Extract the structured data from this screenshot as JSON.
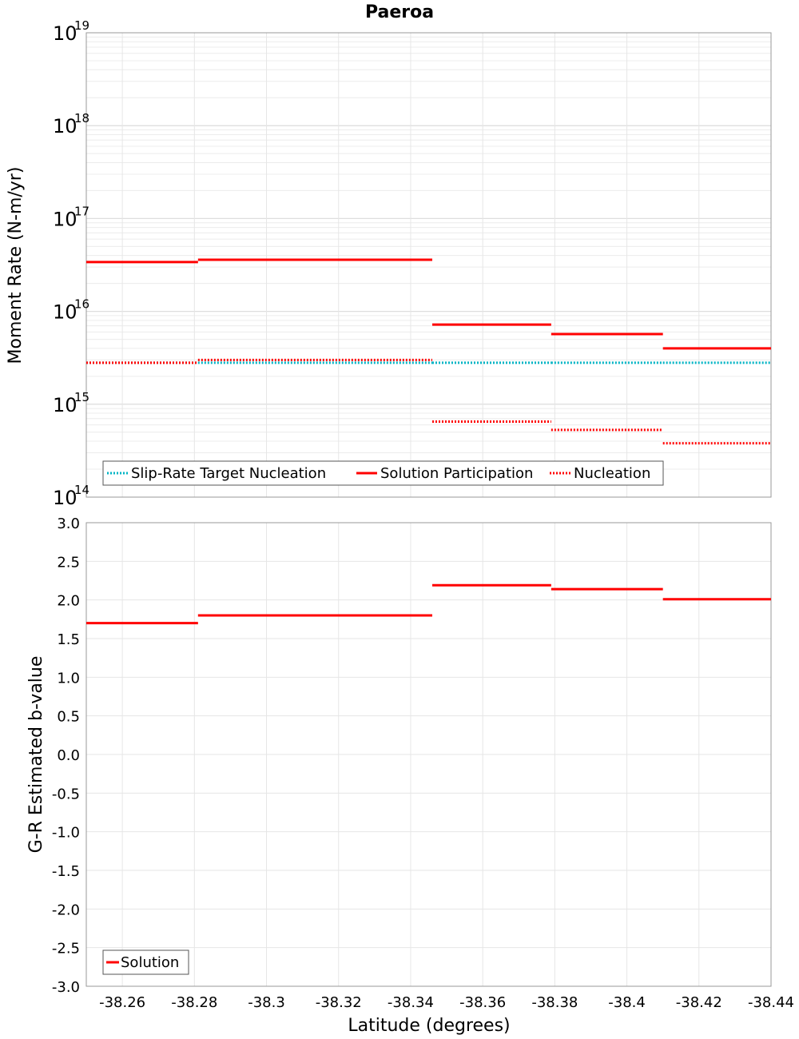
{
  "chart_data": {
    "title": "Paeroa",
    "xlabel": "Latitude (degrees)",
    "xlim": [
      -38.25,
      -38.44
    ],
    "x_ticks": [
      "-38.26",
      "-38.28",
      "-38.3",
      "-38.32",
      "-38.34",
      "-38.36",
      "-38.38",
      "-38.4",
      "-38.42",
      "-38.44"
    ],
    "x_tick_values": [
      -38.26,
      -38.28,
      -38.3,
      -38.32,
      -38.34,
      -38.36,
      -38.38,
      -38.4,
      -38.42,
      -38.44
    ],
    "panels": [
      {
        "type": "line",
        "ylabel": "Moment Rate (N-m/yr)",
        "yscale": "log",
        "ylim": [
          100000000000000.0,
          1e+19
        ],
        "y_tick_exponents": [
          14,
          15,
          16,
          17,
          18,
          19
        ],
        "y_tick_base": "10",
        "grid": true,
        "legend_position": "bottom-left",
        "series": [
          {
            "name": "Slip-Rate Target Nucleation",
            "color": "#00b4c4",
            "style": "dotted",
            "segments": [
              {
                "x": [
                  -38.25,
                  -38.281
                ],
                "y": 2800000000000000.0
              },
              {
                "x": [
                  -38.281,
                  -38.346
                ],
                "y": 2800000000000000.0
              },
              {
                "x": [
                  -38.346,
                  -38.379
                ],
                "y": 2800000000000000.0
              },
              {
                "x": [
                  -38.379,
                  -38.41
                ],
                "y": 2800000000000000.0
              },
              {
                "x": [
                  -38.41,
                  -38.44
                ],
                "y": 2800000000000000.0
              }
            ]
          },
          {
            "name": "Solution Participation",
            "color": "#ff0000",
            "style": "solid",
            "segments": [
              {
                "x": [
                  -38.25,
                  -38.281
                ],
                "y": 3.4e+16
              },
              {
                "x": [
                  -38.281,
                  -38.346
                ],
                "y": 3.6e+16
              },
              {
                "x": [
                  -38.346,
                  -38.379
                ],
                "y": 7200000000000000.0
              },
              {
                "x": [
                  -38.379,
                  -38.41
                ],
                "y": 5700000000000000.0
              },
              {
                "x": [
                  -38.41,
                  -38.44
                ],
                "y": 4000000000000000.0
              }
            ]
          },
          {
            "name": "Nucleation",
            "color": "#ff0000",
            "style": "dotted",
            "segments": [
              {
                "x": [
                  -38.25,
                  -38.281
                ],
                "y": 2800000000000000.0
              },
              {
                "x": [
                  -38.281,
                  -38.346
                ],
                "y": 3000000000000000.0
              },
              {
                "x": [
                  -38.346,
                  -38.379
                ],
                "y": 650000000000000.0
              },
              {
                "x": [
                  -38.379,
                  -38.41
                ],
                "y": 530000000000000.0
              },
              {
                "x": [
                  -38.41,
                  -38.44
                ],
                "y": 380000000000000.0
              }
            ]
          }
        ]
      },
      {
        "type": "line",
        "ylabel": "G-R Estimated b-value",
        "yscale": "linear",
        "ylim": [
          -3.0,
          3.0
        ],
        "y_ticks": [
          "-3.0",
          "-2.5",
          "-2.0",
          "-1.5",
          "-1.0",
          "-0.5",
          "0.0",
          "0.5",
          "1.0",
          "1.5",
          "2.0",
          "2.5",
          "3.0"
        ],
        "grid": true,
        "legend_position": "bottom-left",
        "series": [
          {
            "name": "Solution",
            "color": "#ff0000",
            "style": "solid",
            "segments": [
              {
                "x": [
                  -38.25,
                  -38.281
                ],
                "y": 1.7
              },
              {
                "x": [
                  -38.281,
                  -38.346
                ],
                "y": 1.8
              },
              {
                "x": [
                  -38.346,
                  -38.379
                ],
                "y": 2.19
              },
              {
                "x": [
                  -38.379,
                  -38.41
                ],
                "y": 2.14
              },
              {
                "x": [
                  -38.41,
                  -38.44
                ],
                "y": 2.01
              }
            ]
          }
        ]
      }
    ]
  }
}
